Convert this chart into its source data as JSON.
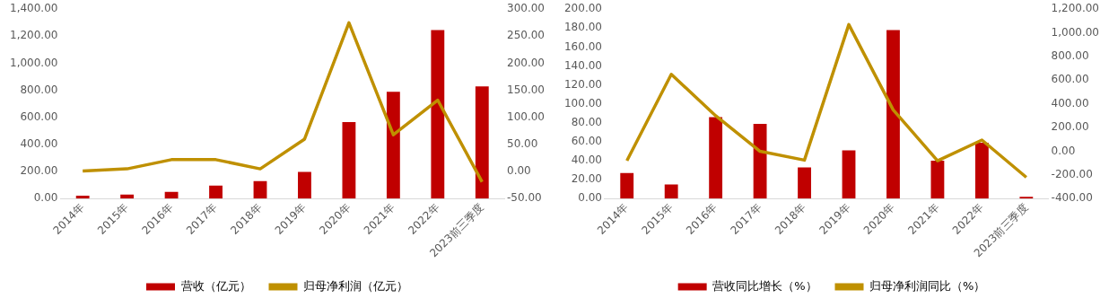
{
  "chart_data": [
    {
      "type": "bar",
      "categories": [
        "2014年",
        "2015年",
        "2016年",
        "2017年",
        "2018年",
        "2019年",
        "2020年",
        "2021年",
        "2022年",
        "2023前三季度"
      ],
      "series": [
        {
          "name": "营收（亿元）",
          "color": "#c00000",
          "values": [
            22,
            30,
            50,
            97,
            130,
            198,
            565,
            790,
            1245,
            830
          ]
        },
        {
          "name": "归母净利润（亿元）",
          "type": "line",
          "axis": "y2",
          "color": "#bf9000",
          "values": [
            1,
            5,
            22,
            22,
            5,
            60,
            275,
            68,
            132,
            -19
          ]
        }
      ],
      "ylim": [
        0,
        1400
      ],
      "yticks": [
        {
          "value": 0,
          "label": "0.00"
        },
        {
          "value": 200,
          "label": "200.00"
        },
        {
          "value": 400,
          "label": "400.00"
        },
        {
          "value": 600,
          "label": "600.00"
        },
        {
          "value": 800,
          "label": "800.00"
        },
        {
          "value": 1000,
          "label": "1,000.00"
        },
        {
          "value": 1200,
          "label": "1,200.00"
        },
        {
          "value": 1400,
          "label": "1,400.00"
        }
      ],
      "y2lim": [
        -50,
        300
      ],
      "y2ticks": [
        {
          "value": -50,
          "label": "-50.00"
        },
        {
          "value": 0,
          "label": "0.00"
        },
        {
          "value": 50,
          "label": "50.00"
        },
        {
          "value": 100,
          "label": "100.00"
        },
        {
          "value": 150,
          "label": "150.00"
        },
        {
          "value": 200,
          "label": "200.00"
        },
        {
          "value": 250,
          "label": "250.00"
        },
        {
          "value": 300,
          "label": "300.00"
        }
      ],
      "grid": false,
      "legend": "bottom",
      "marker": "none"
    },
    {
      "type": "bar",
      "categories": [
        "2014年",
        "2015年",
        "2016年",
        "2017年",
        "2018年",
        "2019年",
        "2020年",
        "2021年",
        "2022年",
        "2023前三季度"
      ],
      "series": [
        {
          "name": "营收同比增长（%）",
          "color": "#c00000",
          "values": [
            27,
            15,
            86,
            79,
            33,
            51,
            178,
            40,
            59,
            2
          ]
        },
        {
          "name": "归母净利润同比（%）",
          "type": "line",
          "axis": "y2",
          "color": "#bf9000",
          "values": [
            -80,
            650,
            300,
            0,
            -75,
            1070,
            350,
            -80,
            95,
            -220
          ]
        }
      ],
      "ylim": [
        0,
        200
      ],
      "yticks": [
        {
          "value": 0,
          "label": "0.00"
        },
        {
          "value": 20,
          "label": "20.00"
        },
        {
          "value": 40,
          "label": "40.00"
        },
        {
          "value": 60,
          "label": "60.00"
        },
        {
          "value": 80,
          "label": "80.00"
        },
        {
          "value": 100,
          "label": "100.00"
        },
        {
          "value": 120,
          "label": "120.00"
        },
        {
          "value": 140,
          "label": "140.00"
        },
        {
          "value": 160,
          "label": "160.00"
        },
        {
          "value": 180,
          "label": "180.00"
        },
        {
          "value": 200,
          "label": "200.00"
        }
      ],
      "y2lim": [
        -400,
        1200
      ],
      "y2ticks": [
        {
          "value": -400,
          "label": "-400.00"
        },
        {
          "value": -200,
          "label": "-200.00"
        },
        {
          "value": 0,
          "label": "0.00"
        },
        {
          "value": 200,
          "label": "200.00"
        },
        {
          "value": 400,
          "label": "400.00"
        },
        {
          "value": 600,
          "label": "600.00"
        },
        {
          "value": 800,
          "label": "800.00"
        },
        {
          "value": 1000,
          "label": "1,000.00"
        },
        {
          "value": 1200,
          "label": "1,200.00"
        }
      ],
      "grid": false,
      "legend": "bottom",
      "marker": "none"
    }
  ]
}
